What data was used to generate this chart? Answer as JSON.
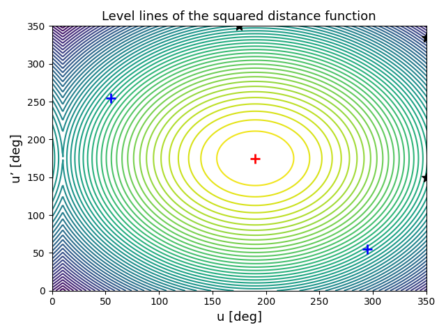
{
  "title": "Level lines of the squared distance function",
  "xlabel": "u [deg]",
  "ylabel": "u’ [deg]",
  "xlim": [
    0,
    350
  ],
  "ylim": [
    0,
    350
  ],
  "xticks": [
    0,
    50,
    100,
    150,
    200,
    250,
    300,
    350
  ],
  "yticks": [
    0,
    50,
    100,
    150,
    200,
    250,
    300,
    350
  ],
  "red_plus": [
    190,
    175
  ],
  "blue_plus_1": [
    55,
    255
  ],
  "blue_plus_2": [
    295,
    55
  ],
  "black_star_1": [
    175,
    350
  ],
  "black_star_2": [
    350,
    335
  ],
  "black_star_3": [
    350,
    150
  ],
  "n_levels": 50,
  "cmap": "viridis",
  "figsize": [
    6.4,
    4.8
  ],
  "dpi": 100,
  "period": 360
}
